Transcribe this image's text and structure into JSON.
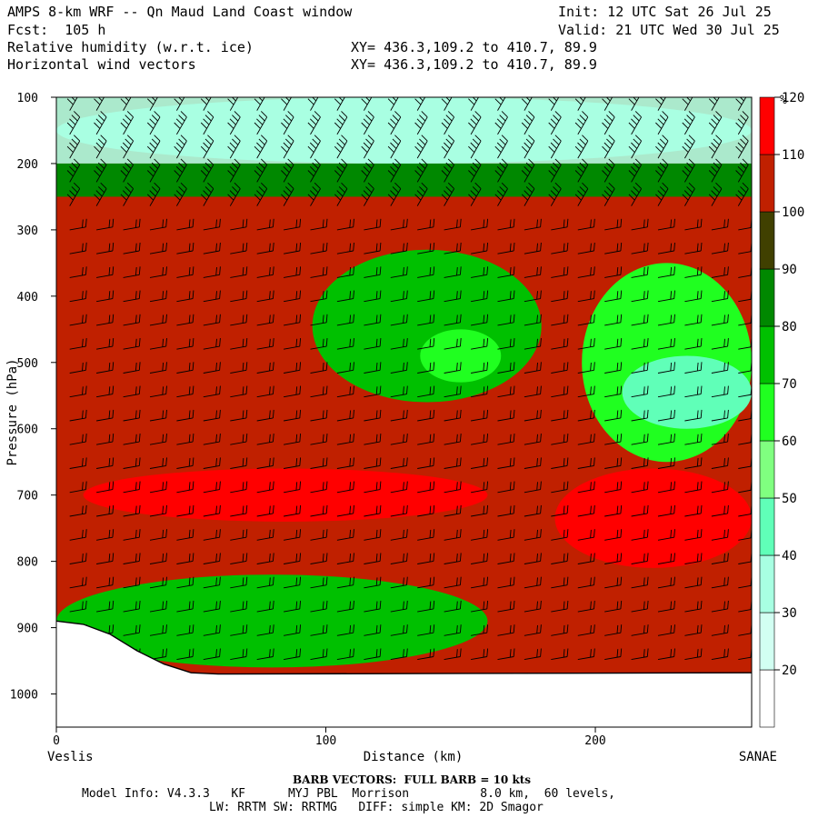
{
  "header": {
    "line1_left": "AMPS 8-km WRF -- Qn Maud Land Coast window",
    "line1_right": "Init: 12 UTC Sat 26 Jul 25",
    "line2_left": "Fcst:  105 h",
    "line2_right": "Valid: 21 UTC Wed 30 Jul 25",
    "line3_left": "Relative humidity (w.r.t. ice)",
    "line3_right": "XY= 436.3,109.2 to 410.7, 89.9",
    "line4_left": "Horizontal wind vectors",
    "line4_right": "XY= 436.3,109.2 to 410.7, 89.9"
  },
  "chart_data": {
    "type": "heatmap",
    "title": "Relative humidity (w.r.t. ice)",
    "xlabel": "Distance (km)",
    "ylabel": "Pressure (hPa)",
    "x_range": [
      0,
      258
    ],
    "y_range": [
      100,
      1050
    ],
    "y_axis": "pressure, increasing downward",
    "x_ticks": [
      0,
      100,
      200
    ],
    "y_ticks": [
      100,
      200,
      300,
      400,
      500,
      600,
      700,
      800,
      900,
      1000
    ],
    "x_start_label": "Veslis",
    "x_end_label": "SANAE",
    "colorbar": {
      "unit": "%",
      "levels": [
        20,
        30,
        40,
        50,
        60,
        70,
        80,
        90,
        100,
        110,
        120
      ],
      "colors": [
        "#ffffff",
        "#d2fff2",
        "#a8ffe2",
        "#60ffb8",
        "#80ff80",
        "#20ff20",
        "#00c000",
        "#008800",
        "#404000",
        "#c02000",
        "#ff0000"
      ]
    },
    "background_rh": 105,
    "features": [
      {
        "label": "dry layer near model top",
        "x": [
          0,
          258
        ],
        "p": [
          100,
          200
        ],
        "rh": 30
      },
      {
        "label": "dry tongue mid-troposphere",
        "x": [
          95,
          180
        ],
        "p": [
          330,
          560
        ],
        "rh": 72
      },
      {
        "label": "dry core mid-troposphere",
        "x": [
          135,
          165
        ],
        "p": [
          450,
          530
        ],
        "rh": 62
      },
      {
        "label": "dry region east",
        "x": [
          195,
          258
        ],
        "p": [
          350,
          650
        ],
        "rh": 68
      },
      {
        "label": "driest core east",
        "x": [
          210,
          258
        ],
        "p": [
          490,
          600
        ],
        "rh": 45
      },
      {
        "label": "supersaturated band west",
        "x": [
          10,
          160
        ],
        "p": [
          660,
          740
        ],
        "rh": 115
      },
      {
        "label": "supersaturated band east",
        "x": [
          185,
          258
        ],
        "p": [
          660,
          810
        ],
        "rh": 118
      },
      {
        "label": "near-surface dry layer",
        "x": [
          0,
          160
        ],
        "p": [
          820,
          960
        ],
        "rh": 75
      }
    ],
    "barb_note": "Wind barbs on a regular grid: westerly-type barbs, ~40-60 kts aloft, ~20-30 kts in lower levels",
    "terrain": {
      "x": [
        0,
        10,
        20,
        30,
        40,
        50,
        60,
        258
      ],
      "p": [
        890,
        895,
        910,
        935,
        955,
        968,
        970,
        968
      ]
    }
  },
  "footer": {
    "barb_vectors": "BARB VECTORS:  FULL BARB = 10 kts",
    "model_info": "Model Info: V4.3.3   KF      MYJ PBL  Morrison          8.0 km,  60 levels,",
    "physics": "LW: RRTM SW: RRTMG   DIFF: simple KM: 2D Smagor"
  }
}
